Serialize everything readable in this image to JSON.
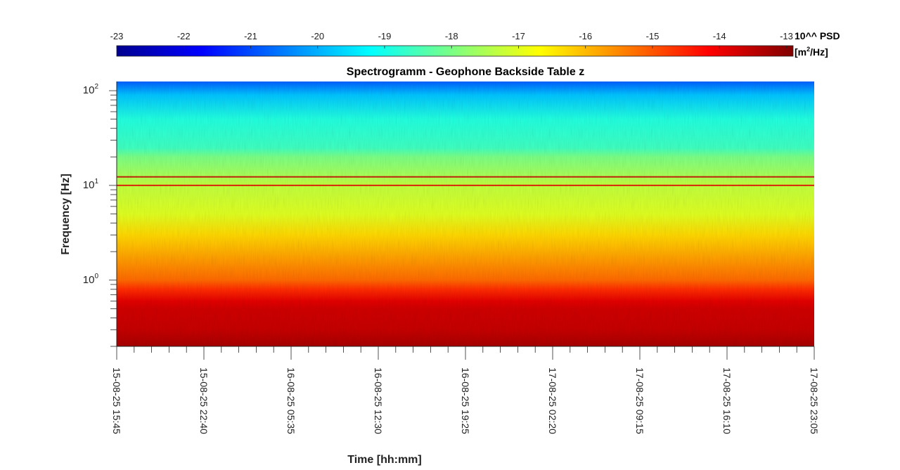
{
  "chart_data": {
    "type": "heatmap",
    "title": "Spectrogramm - Geophone Backside Table z",
    "xlabel": "Time [hh:mm]",
    "ylabel": "Frequency [Hz]",
    "x_tick_labels": [
      "15-08-25 15:45",
      "15-08-25 22:40",
      "16-08-25 05:35",
      "16-08-25 12:30",
      "16-08-25 19:25",
      "17-08-25 02:20",
      "17-08-25 09:15",
      "17-08-25 16:10",
      "17-08-25 23:05"
    ],
    "y_scale": "log",
    "y_tick_labels": [
      {
        "base": "10",
        "exp": "0",
        "value": 1
      },
      {
        "base": "10",
        "exp": "1",
        "value": 10
      },
      {
        "base": "10",
        "exp": "2",
        "value": 100
      }
    ],
    "ylim": [
      0.2,
      125
    ],
    "colorbar": {
      "label": "10^^ PSD",
      "unit_prefix": "[m",
      "unit_exp": "2",
      "unit_suffix": "/Hz]",
      "ticks": [
        "-23",
        "-22",
        "-21",
        "-20",
        "-19",
        "-18",
        "-17",
        "-16",
        "-15",
        "-14",
        "-13"
      ],
      "range": [
        -23,
        -12.9
      ],
      "colormap": "jet",
      "placement": "top"
    },
    "spectrum_profile": [
      {
        "f": 0.2,
        "log_psd": -13.3
      },
      {
        "f": 0.3,
        "log_psd": -13.6
      },
      {
        "f": 0.5,
        "log_psd": -13.7
      },
      {
        "f": 0.6,
        "log_psd": -13.9
      },
      {
        "f": 0.8,
        "log_psd": -14.6
      },
      {
        "f": 1.0,
        "log_psd": -15.2
      },
      {
        "f": 2.0,
        "log_psd": -15.9
      },
      {
        "f": 3.0,
        "log_psd": -16.3
      },
      {
        "f": 5.0,
        "log_psd": -17.0
      },
      {
        "f": 10,
        "log_psd": -17.3
      },
      {
        "f": 20,
        "log_psd": -18.0
      },
      {
        "f": 25,
        "log_psd": -18.6
      },
      {
        "f": 50,
        "log_psd": -18.9
      },
      {
        "f": 90,
        "log_psd": -19.8
      },
      {
        "f": 125,
        "log_psd": -20.8
      }
    ],
    "line_features": [
      {
        "f": 12.3,
        "log_psd": -13.6
      },
      {
        "f": 10.0,
        "log_psd": -13.9
      }
    ],
    "grid": false
  }
}
